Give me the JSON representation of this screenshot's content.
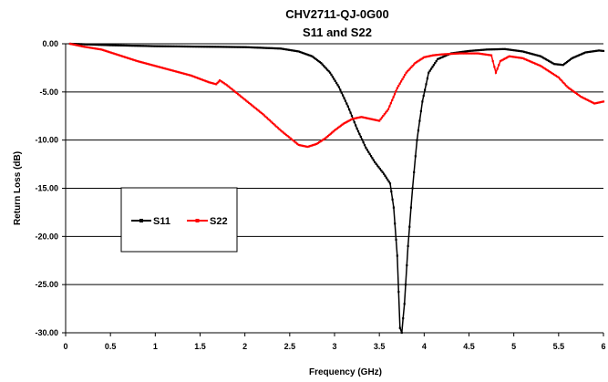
{
  "chart_data": {
    "type": "line",
    "title": "CHV2711-QJ-0G00",
    "subtitle": "S11 and S22",
    "xlabel": "Frequency (GHz)",
    "ylabel": "Return Loss (dB)",
    "xlim": [
      0,
      6
    ],
    "ylim": [
      -30,
      0
    ],
    "x_ticks": [
      "0",
      "0.5",
      "1",
      "1.5",
      "2",
      "2.5",
      "3",
      "3.5",
      "4",
      "4.5",
      "5",
      "5.5",
      "6"
    ],
    "y_ticks": [
      "0.00",
      "-5.00",
      "-10.00",
      "-15.00",
      "-20.00",
      "-25.00",
      "-30.00"
    ],
    "grid": "horizontal",
    "legend_position": "center-left",
    "series": [
      {
        "name": "S11",
        "color": "#000000",
        "marker": "square",
        "x": [
          0.05,
          0.2,
          0.5,
          1.0,
          1.5,
          2.0,
          2.4,
          2.6,
          2.75,
          2.85,
          2.95,
          3.05,
          3.15,
          3.25,
          3.35,
          3.45,
          3.55,
          3.62,
          3.66,
          3.7,
          3.73,
          3.75,
          3.78,
          3.82,
          3.87,
          3.92,
          3.98,
          4.05,
          4.15,
          4.3,
          4.5,
          4.7,
          4.9,
          5.1,
          5.3,
          5.45,
          5.55,
          5.65,
          5.8,
          5.95,
          6.0
        ],
        "values": [
          0.0,
          -0.05,
          -0.15,
          -0.25,
          -0.3,
          -0.35,
          -0.5,
          -0.8,
          -1.3,
          -2.0,
          -3.0,
          -4.5,
          -6.5,
          -8.8,
          -10.8,
          -12.3,
          -13.5,
          -14.5,
          -17.0,
          -22.0,
          -29.5,
          -30.0,
          -27.0,
          -21.0,
          -15.0,
          -10.0,
          -6.0,
          -3.0,
          -1.6,
          -1.0,
          -0.75,
          -0.6,
          -0.55,
          -0.8,
          -1.3,
          -2.1,
          -2.2,
          -1.5,
          -0.9,
          -0.7,
          -0.75
        ]
      },
      {
        "name": "S22",
        "color": "#ff0000",
        "marker": "square",
        "x": [
          0.05,
          0.2,
          0.4,
          0.6,
          0.8,
          1.0,
          1.2,
          1.4,
          1.6,
          1.68,
          1.72,
          1.8,
          2.0,
          2.2,
          2.4,
          2.6,
          2.7,
          2.8,
          2.9,
          3.0,
          3.1,
          3.2,
          3.3,
          3.4,
          3.5,
          3.6,
          3.7,
          3.8,
          3.9,
          4.0,
          4.1,
          4.2,
          4.4,
          4.6,
          4.75,
          4.8,
          4.85,
          4.95,
          5.1,
          5.3,
          5.5,
          5.6,
          5.75,
          5.9,
          6.0
        ],
        "values": [
          0.0,
          -0.3,
          -0.6,
          -1.2,
          -1.8,
          -2.3,
          -2.8,
          -3.3,
          -4.0,
          -4.2,
          -3.8,
          -4.3,
          -5.8,
          -7.3,
          -9.0,
          -10.5,
          -10.7,
          -10.4,
          -9.8,
          -9.0,
          -8.3,
          -7.8,
          -7.6,
          -7.8,
          -8.0,
          -6.8,
          -4.6,
          -3.0,
          -2.0,
          -1.4,
          -1.2,
          -1.1,
          -1.0,
          -1.0,
          -1.2,
          -3.0,
          -1.8,
          -1.3,
          -1.5,
          -2.3,
          -3.5,
          -4.5,
          -5.5,
          -6.2,
          -6.0
        ]
      }
    ]
  }
}
